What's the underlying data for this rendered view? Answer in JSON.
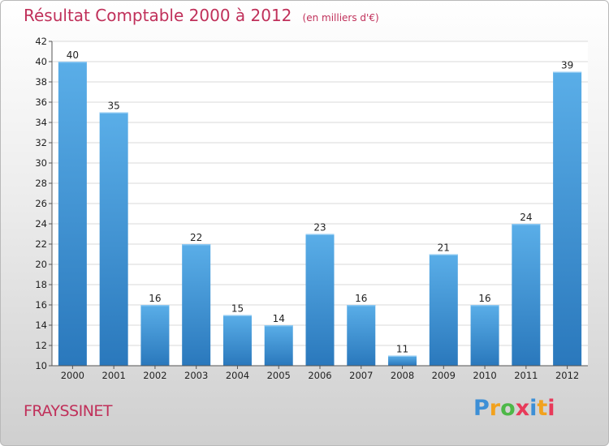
{
  "chart_data": {
    "type": "bar",
    "title": "Résultat Comptable 2000 à 2012",
    "subtitle": "(en milliers d'€)",
    "categories": [
      "2000",
      "2001",
      "2002",
      "2003",
      "2004",
      "2005",
      "2006",
      "2007",
      "2008",
      "2009",
      "2010",
      "2011",
      "2012"
    ],
    "values": [
      40,
      35,
      16,
      22,
      15,
      14,
      23,
      16,
      11,
      21,
      16,
      24,
      39
    ],
    "ylim": [
      10,
      42
    ],
    "yticks": [
      10,
      12,
      14,
      16,
      18,
      20,
      22,
      24,
      26,
      28,
      30,
      32,
      34,
      36,
      38,
      40,
      42
    ],
    "grid": true,
    "xlabel": "",
    "ylabel": ""
  },
  "colors": {
    "bar_light": "#5aaee8",
    "bar_dark": "#2a78bc",
    "title": "#c0305a",
    "grid": "#d8d8d8"
  },
  "footer": {
    "commune": "FRAYSSINET"
  },
  "logo": {
    "letters": [
      "P",
      "r",
      "o",
      "x",
      "i",
      "t",
      "i"
    ],
    "colors": [
      "#3d8fd6",
      "#f2a21e",
      "#4db848",
      "#e83a5a",
      "#3d8fd6",
      "#f2a21e",
      "#e83a5a"
    ]
  }
}
